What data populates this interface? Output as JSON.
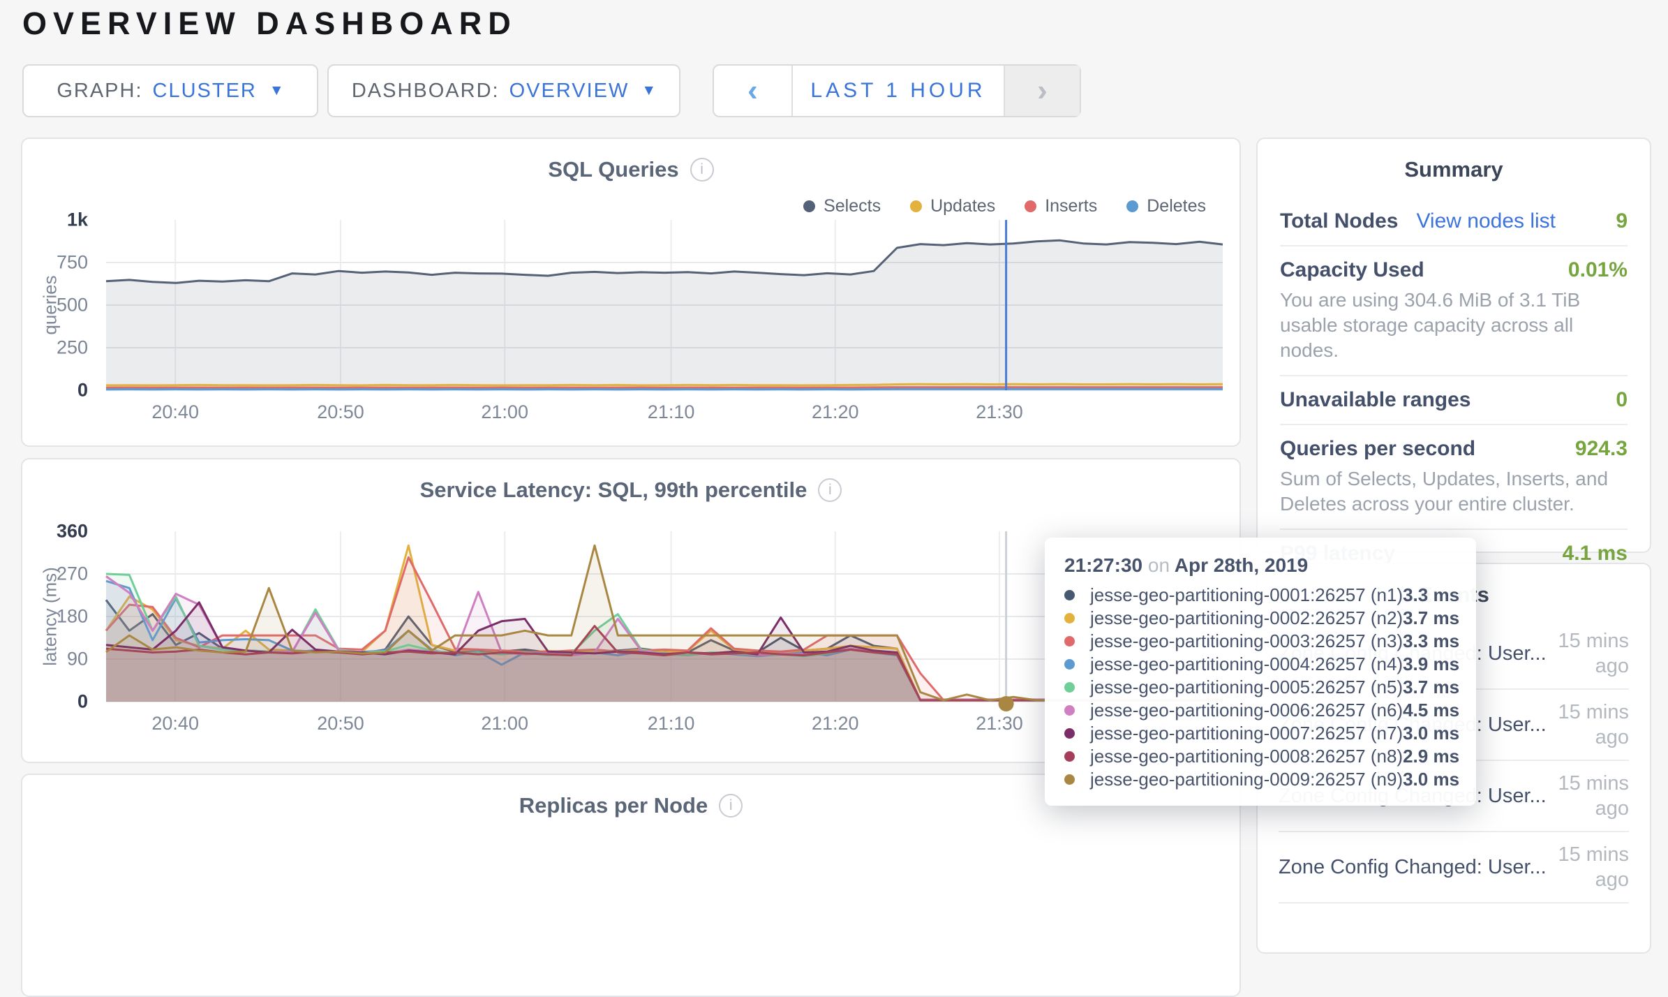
{
  "page": {
    "title": "OVERVIEW DASHBOARD"
  },
  "controls": {
    "graph": {
      "label": "GRAPH:",
      "value": "CLUSTER",
      "caret_icon": "▼"
    },
    "dashboard": {
      "label": "DASHBOARD:",
      "value": "OVERVIEW",
      "caret_icon": "▼"
    },
    "time_window": {
      "label": "LAST 1 HOUR",
      "prev_icon": "‹",
      "next_icon": "›"
    }
  },
  "info_icon_glyph": "i",
  "chart_data": [
    {
      "type": "area",
      "title": "SQL Queries",
      "ylabel": "queries",
      "ylim": [
        0,
        1000
      ],
      "grid": true,
      "legend_position": "top-right",
      "fill_opacity": 0.12,
      "y_ticks": [
        {
          "label": "1k",
          "v": 1000
        },
        {
          "label": "750",
          "v": 750
        },
        {
          "label": "500",
          "v": 500
        },
        {
          "label": "250",
          "v": 250
        },
        {
          "label": "0",
          "v": 0
        }
      ],
      "x_ticks": [
        {
          "label": "20:40",
          "f": 0.062
        },
        {
          "label": "20:50",
          "f": 0.21
        },
        {
          "label": "21:00",
          "f": 0.357
        },
        {
          "label": "21:10",
          "f": 0.506
        },
        {
          "label": "21:20",
          "f": 0.653
        },
        {
          "label": "21:30",
          "f": 0.8
        }
      ],
      "crosshair": {
        "f": 0.806,
        "color": "#4a7bd6"
      },
      "series": [
        {
          "name": "Selects",
          "color": "#556177",
          "values": [
            640,
            648,
            636,
            630,
            643,
            638,
            646,
            640,
            686,
            680,
            700,
            690,
            697,
            692,
            678,
            690,
            686,
            685,
            678,
            672,
            690,
            695,
            688,
            693,
            690,
            694,
            686,
            697,
            690,
            682,
            676,
            687,
            680,
            700,
            836,
            858,
            852,
            864,
            856,
            862,
            874,
            880,
            862,
            856,
            870,
            866,
            858,
            872,
            856
          ]
        },
        {
          "name": "Updates",
          "color": "#e2b13e",
          "values": [
            29,
            30,
            29,
            30,
            31,
            30,
            30,
            29,
            30,
            31,
            30,
            29,
            31,
            30,
            30,
            31,
            30,
            29,
            30,
            30,
            31,
            30,
            31,
            29,
            30,
            31,
            30,
            31,
            30,
            30,
            29,
            30,
            31,
            32,
            35,
            36,
            35,
            36,
            35,
            36,
            35,
            36,
            35,
            35,
            36,
            35,
            36,
            35,
            36
          ]
        },
        {
          "name": "Inserts",
          "color": "#e0696a",
          "values": [
            15,
            16,
            15,
            16,
            16,
            15,
            16,
            15,
            16,
            16,
            15,
            16,
            16,
            15,
            16,
            16,
            15,
            16,
            15,
            16,
            16,
            15,
            16,
            16,
            15,
            16,
            16,
            15,
            16,
            16,
            15,
            16,
            16,
            17,
            18,
            18,
            18,
            18,
            18,
            18,
            18,
            18,
            18,
            18,
            18,
            18,
            18,
            18,
            18
          ]
        },
        {
          "name": "Deletes",
          "color": "#5b9bd1",
          "values": [
            5,
            6,
            5,
            6,
            5,
            6,
            5,
            6,
            5,
            6,
            5,
            6,
            5,
            6,
            5,
            6,
            5,
            6,
            5,
            6,
            5,
            6,
            5,
            6,
            5,
            6,
            5,
            6,
            5,
            6,
            5,
            6,
            5,
            6,
            7,
            7,
            7,
            7,
            7,
            7,
            7,
            7,
            7,
            7,
            7,
            7,
            7,
            7,
            7
          ]
        }
      ]
    },
    {
      "type": "area",
      "title": "Service Latency: SQL, 99th percentile",
      "ylabel": "latency (ms)",
      "ylim": [
        0,
        360
      ],
      "grid": true,
      "fill_opacity": 0.1,
      "y_ticks": [
        {
          "label": "360",
          "v": 360
        },
        {
          "label": "270",
          "v": 270
        },
        {
          "label": "180",
          "v": 180
        },
        {
          "label": "90",
          "v": 90
        },
        {
          "label": "0",
          "v": 0
        }
      ],
      "x_ticks": [
        {
          "label": "20:40",
          "f": 0.062
        },
        {
          "label": "20:50",
          "f": 0.21
        },
        {
          "label": "21:00",
          "f": 0.357
        },
        {
          "label": "21:10",
          "f": 0.506
        },
        {
          "label": "21:20",
          "f": 0.653
        },
        {
          "label": "21:30",
          "f": 0.8
        }
      ],
      "crosshair": {
        "f": 0.806,
        "color": "#cdd0d6",
        "marker_color": "#a98641"
      },
      "series": [
        {
          "name": "jesse-geo-partitioning-0001:26257 (n1)",
          "color": "#475872",
          "values": [
            215,
            150,
            185,
            120,
            145,
            112,
            108,
            106,
            105,
            108,
            106,
            102,
            110,
            180,
            120,
            105,
            108,
            106,
            110,
            104,
            107,
            105,
            108,
            112,
            106,
            104,
            130,
            108,
            104,
            135,
            108,
            112,
            140,
            118,
            112,
            3.3,
            3.3,
            3.3,
            3.3,
            3.3,
            3.3,
            3.3,
            3.3,
            3.3,
            3.3,
            3.3,
            3.3,
            3.3,
            3.3
          ]
        },
        {
          "name": "jesse-geo-partitioning-0002:26257 (n2)",
          "color": "#e2b13e",
          "values": [
            150,
            222,
            195,
            130,
            118,
            112,
            150,
            110,
            108,
            106,
            104,
            105,
            150,
            330,
            120,
            108,
            110,
            106,
            104,
            107,
            105,
            108,
            106,
            110,
            105,
            107,
            150,
            110,
            106,
            104,
            108,
            112,
            118,
            115,
            112,
            3.7,
            3.7,
            3.7,
            3.7,
            3.7,
            3.7,
            3.7,
            3.7,
            3.7,
            3.7,
            3.7,
            3.7,
            3.7,
            3.7
          ]
        },
        {
          "name": "jesse-geo-partitioning-0003:26257 (n3)",
          "color": "#e0696a",
          "values": [
            150,
            205,
            200,
            135,
            115,
            140,
            140,
            140,
            140,
            140,
            112,
            110,
            150,
            305,
            210,
            112,
            110,
            108,
            106,
            105,
            108,
            110,
            106,
            108,
            110,
            108,
            155,
            112,
            108,
            106,
            110,
            140,
            140,
            140,
            140,
            60,
            3.3,
            3.3,
            3.3,
            3.3,
            3.3,
            3.3,
            3.3,
            3.3,
            3.3,
            3.3,
            3.3,
            3.3,
            3.3
          ]
        },
        {
          "name": "jesse-geo-partitioning-0004:26257 (n4)",
          "color": "#5b9bd1",
          "values": [
            255,
            240,
            130,
            218,
            125,
            130,
            132,
            130,
            108,
            106,
            104,
            105,
            108,
            150,
            110,
            98,
            106,
            78,
            104,
            102,
            100,
            104,
            98,
            106,
            102,
            98,
            104,
            100,
            96,
            100,
            104,
            98,
            110,
            104,
            98,
            3.9,
            3.9,
            3.9,
            3.9,
            3.9,
            3.9,
            3.9,
            3.9,
            3.9,
            3.9,
            3.9,
            3.9,
            3.9,
            3.9
          ]
        },
        {
          "name": "jesse-geo-partitioning-0005:26257 (n5)",
          "color": "#6fcf97",
          "values": [
            270,
            268,
            150,
            222,
            118,
            110,
            108,
            106,
            104,
            195,
            110,
            104,
            106,
            120,
            108,
            102,
            104,
            100,
            104,
            98,
            102,
            150,
            185,
            110,
            100,
            98,
            104,
            102,
            98,
            100,
            96,
            102,
            112,
            104,
            100,
            3.7,
            3.7,
            3.7,
            3.7,
            3.7,
            3.7,
            3.7,
            3.7,
            3.7,
            3.7,
            3.7,
            3.7,
            3.7,
            3.7
          ]
        },
        {
          "name": "jesse-geo-partitioning-0006:26257 (n6)",
          "color": "#cf7fc2",
          "values": [
            265,
            230,
            150,
            228,
            205,
            115,
            108,
            104,
            106,
            188,
            108,
            104,
            102,
            110,
            106,
            100,
            232,
            104,
            100,
            102,
            98,
            104,
            175,
            108,
            100,
            104,
            102,
            106,
            98,
            102,
            100,
            104,
            112,
            106,
            100,
            4.5,
            4.5,
            4.5,
            4.5,
            4.5,
            4.5,
            4.5,
            4.5,
            4.5,
            4.5,
            4.5,
            4.5,
            4.5,
            4.5
          ]
        },
        {
          "name": "jesse-geo-partitioning-0007:26257 (n7)",
          "color": "#7a2d66",
          "values": [
            120,
            115,
            110,
            150,
            210,
            115,
            108,
            104,
            152,
            110,
            106,
            104,
            100,
            108,
            104,
            100,
            150,
            170,
            175,
            106,
            104,
            102,
            106,
            104,
            100,
            104,
            102,
            106,
            100,
            178,
            104,
            106,
            118,
            108,
            104,
            3,
            3,
            3,
            3,
            3,
            3,
            3,
            3,
            3,
            3,
            3,
            3,
            3,
            3
          ]
        },
        {
          "name": "jesse-geo-partitioning-0008:26257 (n8)",
          "color": "#a53e58",
          "values": [
            112,
            108,
            104,
            106,
            110,
            104,
            100,
            104,
            102,
            106,
            104,
            100,
            104,
            106,
            102,
            104,
            100,
            104,
            102,
            100,
            98,
            160,
            104,
            102,
            98,
            104,
            100,
            102,
            104,
            100,
            98,
            104,
            110,
            104,
            100,
            2.9,
            2.9,
            2.9,
            2.9,
            2.9,
            2.9,
            2.9,
            2.9,
            2.9,
            2.9,
            2.9,
            2.9,
            2.9,
            2.9
          ]
        },
        {
          "name": "jesse-geo-partitioning-0009:26257 (n9)",
          "color": "#a98641",
          "values": [
            105,
            140,
            110,
            115,
            108,
            104,
            106,
            240,
            108,
            104,
            106,
            102,
            104,
            150,
            108,
            140,
            140,
            140,
            150,
            140,
            140,
            330,
            140,
            140,
            140,
            140,
            140,
            140,
            140,
            140,
            140,
            140,
            140,
            140,
            140,
            20,
            3,
            15,
            3,
            10,
            3,
            3,
            3,
            3,
            3,
            3,
            3,
            3,
            3
          ]
        }
      ]
    },
    {
      "type": "area",
      "title": "Replicas per Node"
    }
  ],
  "summary": {
    "title": "Summary",
    "rows": [
      {
        "label": "Total Nodes",
        "link": "View nodes list",
        "value": "9"
      },
      {
        "label": "Capacity Used",
        "value": "0.01%",
        "sub": "You are using 304.6 MiB of 3.1 TiB usable storage capacity across all nodes."
      },
      {
        "label": "Unavailable ranges",
        "value": "0"
      },
      {
        "label": "Queries per second",
        "value": "924.3",
        "sub": "Sum of Selects, Updates, Inserts, and Deletes across your entire cluster."
      },
      {
        "label": "P99 latency",
        "value": "4.1 ms"
      }
    ]
  },
  "events": {
    "title": "Events",
    "rows": [
      {
        "label": "Zone Config Changed: User...",
        "time": "15 mins ago"
      },
      {
        "label": "Zone Config Changed: User...",
        "time": "15 mins ago"
      },
      {
        "label": "Zone Config Changed: User...",
        "time": "15 mins ago"
      },
      {
        "label": "Zone Config Changed: User...",
        "time": "15 mins ago"
      }
    ]
  },
  "tooltip": {
    "time": "21:27:30",
    "separator": "on",
    "date": "Apr 28th, 2019",
    "values": [
      "3.3 ms",
      "3.7 ms",
      "3.3 ms",
      "3.9 ms",
      "3.7 ms",
      "4.5 ms",
      "3.0 ms",
      "2.9 ms",
      "3.0 ms"
    ]
  }
}
